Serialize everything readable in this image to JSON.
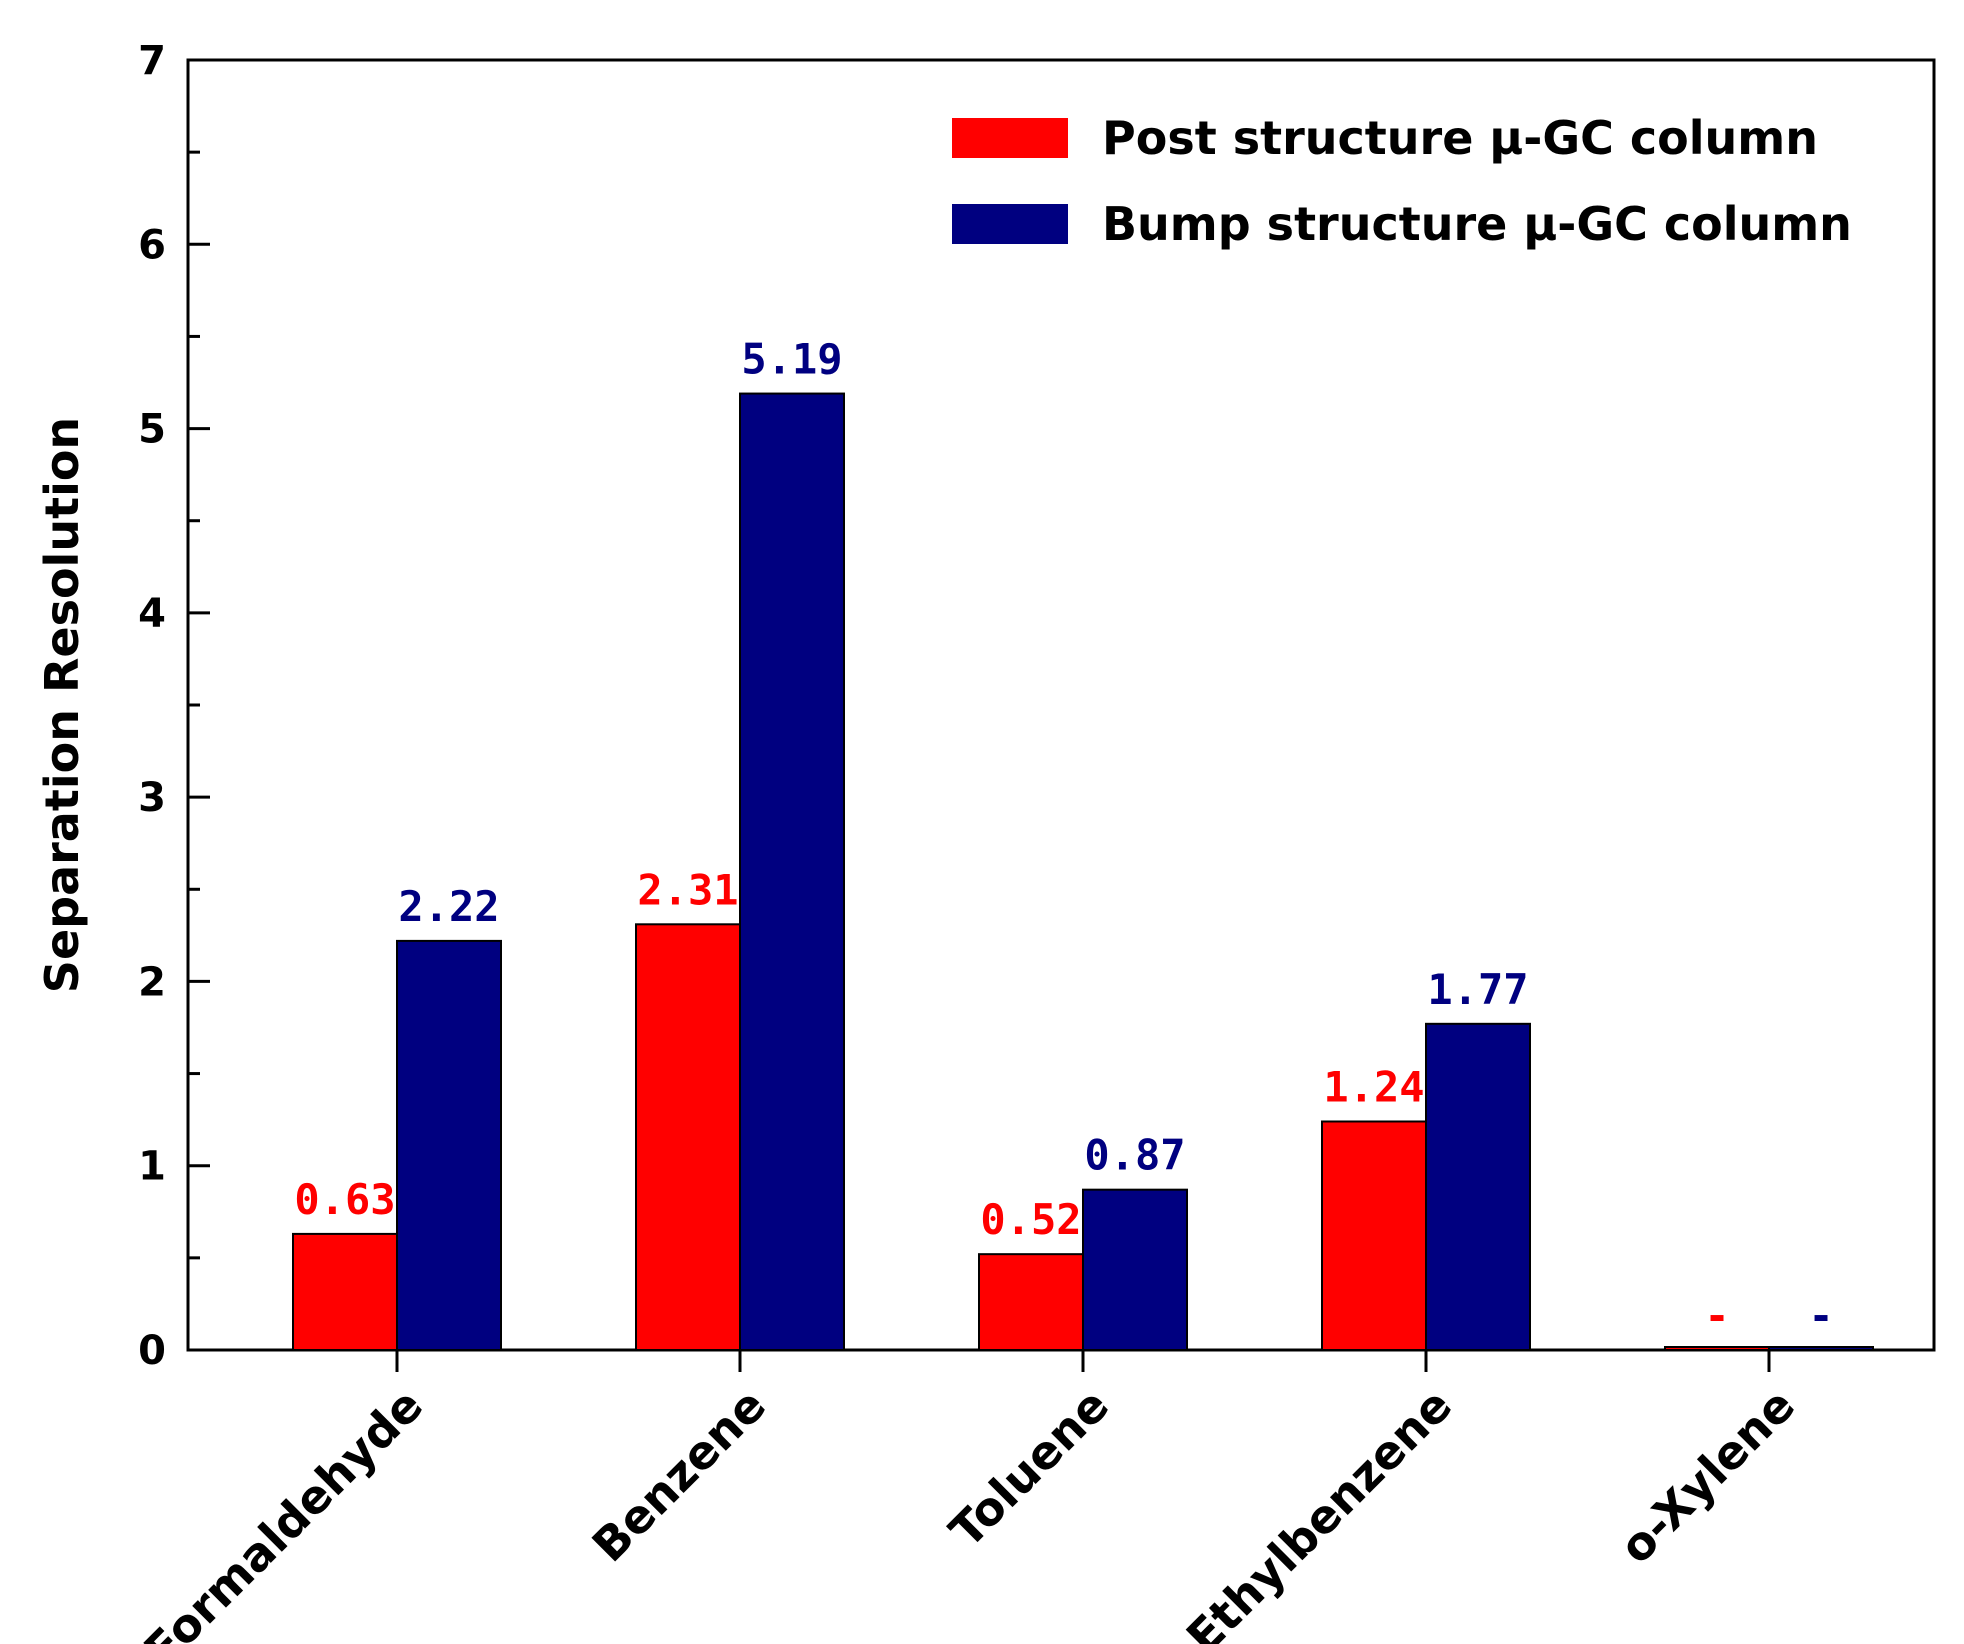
{
  "chart_data": {
    "type": "bar",
    "categories": [
      "Formaldehyde",
      "Benzene",
      "Toluene",
      "Ethylbenzene",
      "o-Xylene"
    ],
    "series": [
      {
        "name": "Post structure μ-GC column",
        "color": "#ff0000",
        "values": [
          0.63,
          2.31,
          0.52,
          1.24,
          0
        ],
        "labels": [
          "0.63",
          "2.31",
          "0.52",
          "1.24",
          "-"
        ]
      },
      {
        "name": "Bump structure μ-GC column",
        "color": "#000080",
        "values": [
          2.22,
          5.19,
          0.87,
          1.77,
          0
        ],
        "labels": [
          "2.22",
          "5.19",
          "0.87",
          "1.77",
          "-"
        ]
      }
    ],
    "ylabel": "Separation Resolution",
    "xlabel": "",
    "ylim": [
      0,
      7
    ],
    "yticks": [
      "0",
      "1",
      "2",
      "3",
      "4",
      "5",
      "6",
      "7"
    ],
    "grid": false,
    "legend_position": "top-right"
  }
}
